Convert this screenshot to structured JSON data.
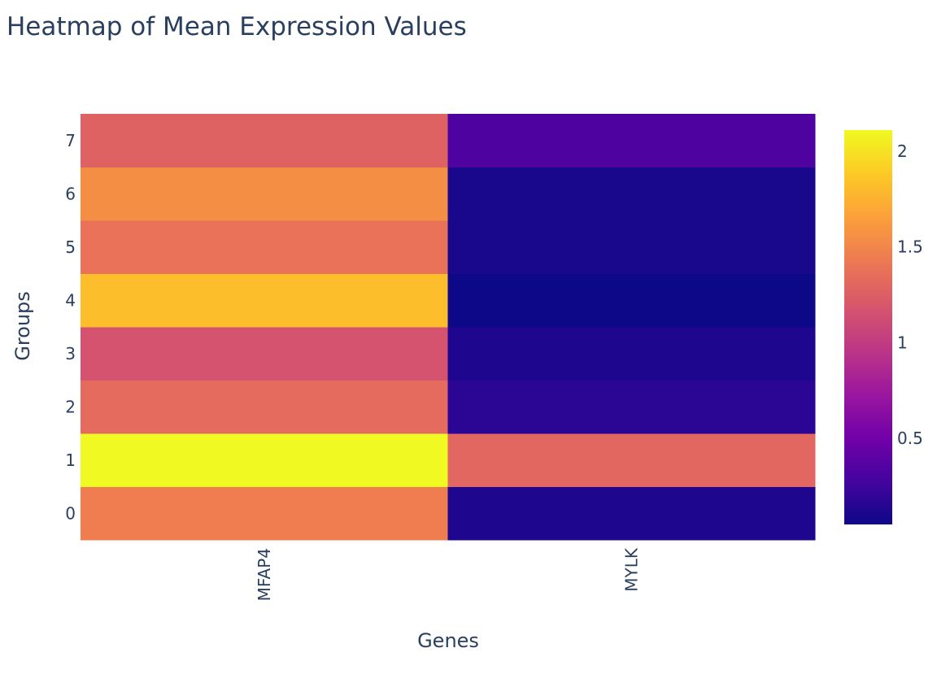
{
  "chart_data": {
    "type": "heatmap",
    "title": "Heatmap of Mean Expression Values",
    "xlabel": "Genes",
    "ylabel": "Groups",
    "x_categories": [
      "MFAP4",
      "MYLK"
    ],
    "y_categories": [
      "0",
      "1",
      "2",
      "3",
      "4",
      "5",
      "6",
      "7"
    ],
    "z": [
      [
        1.45,
        0.12
      ],
      [
        2.11,
        1.3
      ],
      [
        1.33,
        0.17
      ],
      [
        1.17,
        0.12
      ],
      [
        1.82,
        0.05
      ],
      [
        1.38,
        0.1
      ],
      [
        1.55,
        0.1
      ],
      [
        1.27,
        0.32
      ]
    ],
    "zmin": 0.05,
    "zmax": 2.11,
    "colorbar": {
      "tickvals": [
        0.5,
        1,
        1.5,
        2
      ],
      "ticktext": [
        "0.5",
        "1",
        "1.5",
        "2"
      ]
    },
    "colorscale_name": "Plasma",
    "colorscale": [
      [
        0.0,
        "#0d0887"
      ],
      [
        0.111,
        "#46039f"
      ],
      [
        0.222,
        "#7201a8"
      ],
      [
        0.333,
        "#9c179e"
      ],
      [
        0.444,
        "#bd3786"
      ],
      [
        0.556,
        "#d8576b"
      ],
      [
        0.667,
        "#ed7953"
      ],
      [
        0.778,
        "#fb9f3a"
      ],
      [
        0.889,
        "#fdca26"
      ],
      [
        1.0,
        "#f0f921"
      ]
    ],
    "grid": false
  }
}
